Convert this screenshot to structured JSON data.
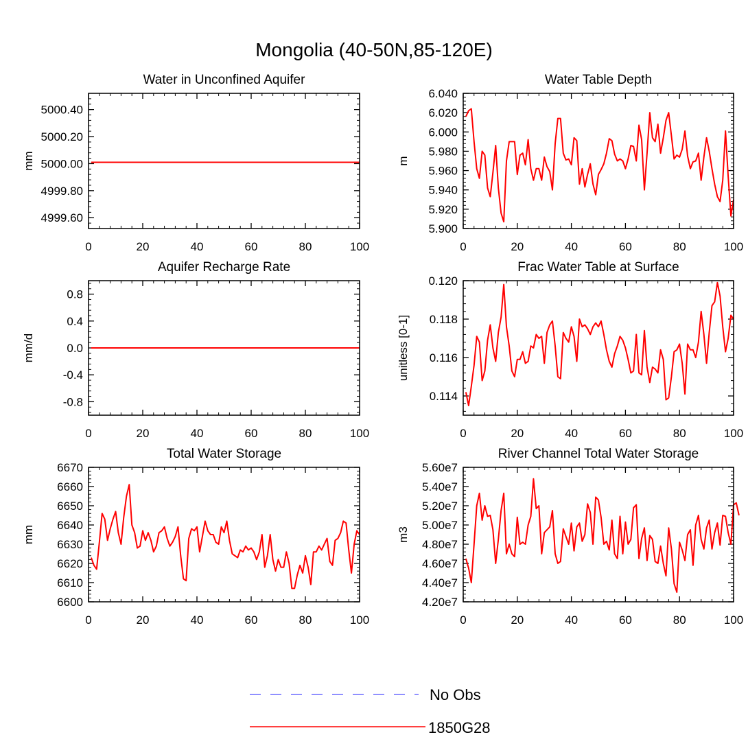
{
  "figure": {
    "title": "Mongolia (40-50N,85-120E)"
  },
  "legend": {
    "entries": [
      {
        "label": "No Obs",
        "color": "#6b6bff",
        "style": "dashed"
      },
      {
        "label": "1850G28",
        "color": "#ff0000",
        "style": "solid"
      }
    ]
  },
  "colors": {
    "series": "#ff0000",
    "axis": "#000000"
  },
  "chart_data": [
    {
      "type": "line",
      "title": "Water in Unconfined Aquifer",
      "xlabel": "",
      "ylabel": "mm",
      "xlim": [
        0,
        100
      ],
      "ylim": [
        4999.52,
        5000.52
      ],
      "xticks": [
        0,
        20,
        40,
        60,
        80,
        100
      ],
      "xtick_labels": [
        "0",
        "20",
        "40",
        "60",
        "80",
        "100"
      ],
      "yticks": [
        4999.6,
        4999.8,
        5000.0,
        5000.2,
        5000.4
      ],
      "ytick_labels": [
        "4999.60",
        "4999.80",
        "5000.00",
        "5000.20",
        "5000.40"
      ],
      "yminor_step": 0.04,
      "series": [
        {
          "name": "1850G28",
          "x": [
            1,
            100
          ],
          "values": [
            5000.01,
            5000.01
          ]
        }
      ]
    },
    {
      "type": "line",
      "title": "Water Table Depth",
      "xlabel": "",
      "ylabel": "m",
      "xlim": [
        0,
        100
      ],
      "ylim": [
        5.9,
        6.04
      ],
      "xticks": [
        0,
        20,
        40,
        60,
        80,
        100
      ],
      "xtick_labels": [
        "0",
        "20",
        "40",
        "60",
        "80",
        "100"
      ],
      "yticks": [
        5.9,
        5.92,
        5.94,
        5.96,
        5.98,
        6.0,
        6.02,
        6.04
      ],
      "ytick_labels": [
        "5.900",
        "5.920",
        "5.940",
        "5.960",
        "5.980",
        "6.000",
        "6.020",
        "6.040"
      ],
      "yminor_step": 0.004,
      "series": [
        {
          "name": "1850G28",
          "start": 1,
          "values": [
            6.016,
            6.022,
            6.024,
            5.99,
            5.962,
            5.952,
            5.98,
            5.976,
            5.942,
            5.933,
            5.958,
            5.986,
            5.942,
            5.916,
            5.907,
            5.97,
            5.99,
            5.99,
            5.99,
            5.956,
            5.976,
            5.978,
            5.966,
            5.992,
            5.962,
            5.95,
            5.962,
            5.962,
            5.95,
            5.974,
            5.964,
            5.959,
            5.94,
            5.988,
            6.014,
            6.014,
            5.978,
            5.971,
            5.972,
            5.966,
            5.994,
            5.991,
            5.946,
            5.962,
            5.943,
            5.956,
            5.967,
            5.946,
            5.935,
            5.956,
            5.961,
            5.967,
            5.978,
            5.993,
            5.991,
            5.977,
            5.97,
            5.972,
            5.97,
            5.962,
            5.972,
            5.986,
            5.985,
            5.97,
            6.007,
            5.992,
            5.94,
            5.978,
            6.02,
            5.994,
            5.99,
            6.008,
            5.978,
            5.994,
            6.012,
            6.02,
            5.996,
            5.972,
            5.976,
            5.974,
            5.982,
            6.001,
            5.975,
            5.962,
            5.969,
            5.97,
            5.978,
            5.95,
            5.974,
            5.994,
            5.98,
            5.962,
            5.946,
            5.933,
            5.928,
            5.95,
            6.001,
            5.954,
            5.913,
            5.93
          ]
        }
      ]
    },
    {
      "type": "line",
      "title": "Aquifer Recharge Rate",
      "xlabel": "",
      "ylabel": "mm/d",
      "xlim": [
        0,
        100
      ],
      "ylim": [
        -1.0,
        1.0
      ],
      "xticks": [
        0,
        20,
        40,
        60,
        80,
        100
      ],
      "xtick_labels": [
        "0",
        "20",
        "40",
        "60",
        "80",
        "100"
      ],
      "yticks": [
        -0.8,
        -0.4,
        0.0,
        0.4,
        0.8
      ],
      "ytick_labels": [
        "-0.8",
        "-0.4",
        "0.0",
        "0.4",
        "0.8"
      ],
      "yminor_step": 0.08,
      "series": [
        {
          "name": "1850G28",
          "x": [
            1,
            100
          ],
          "values": [
            0.0,
            0.0
          ]
        }
      ]
    },
    {
      "type": "line",
      "title": "Frac Water Table at Surface",
      "xlabel": "",
      "ylabel": "unitless [0-1]",
      "xlim": [
        0,
        100
      ],
      "ylim": [
        0.113,
        0.12
      ],
      "xticks": [
        0,
        20,
        40,
        60,
        80,
        100
      ],
      "xtick_labels": [
        "0",
        "20",
        "40",
        "60",
        "80",
        "100"
      ],
      "yticks": [
        0.114,
        0.116,
        0.118,
        0.12
      ],
      "ytick_labels": [
        "0.114",
        "0.116",
        "0.118",
        "0.120"
      ],
      "yminor_step": 0.0004,
      "series": [
        {
          "name": "1850G28",
          "start": 1,
          "values": [
            0.1142,
            0.1135,
            0.1145,
            0.1156,
            0.1171,
            0.1168,
            0.1148,
            0.1153,
            0.1169,
            0.1177,
            0.1165,
            0.1158,
            0.1173,
            0.1181,
            0.1198,
            0.1176,
            0.1166,
            0.1153,
            0.115,
            0.1159,
            0.1159,
            0.1163,
            0.1157,
            0.1158,
            0.1166,
            0.1165,
            0.1172,
            0.117,
            0.1171,
            0.1157,
            0.1173,
            0.1177,
            0.1179,
            0.1166,
            0.115,
            0.1149,
            0.1173,
            0.117,
            0.1168,
            0.1176,
            0.1171,
            0.1158,
            0.118,
            0.1176,
            0.1177,
            0.1175,
            0.1172,
            0.1176,
            0.1178,
            0.1176,
            0.1179,
            0.1172,
            0.1164,
            0.1158,
            0.1155,
            0.1162,
            0.1166,
            0.1171,
            0.1169,
            0.1165,
            0.1159,
            0.1152,
            0.1153,
            0.1172,
            0.1152,
            0.1151,
            0.1174,
            0.1155,
            0.1147,
            0.1155,
            0.1154,
            0.1152,
            0.1164,
            0.1159,
            0.1138,
            0.1139,
            0.115,
            0.1163,
            0.1164,
            0.1167,
            0.1157,
            0.1141,
            0.1167,
            0.1164,
            0.1164,
            0.116,
            0.1168,
            0.1184,
            0.1172,
            0.1157,
            0.1173,
            0.1187,
            0.1189,
            0.1199,
            0.1192,
            0.1176,
            0.1163,
            0.117,
            0.1182,
            0.118
          ]
        }
      ]
    },
    {
      "type": "line",
      "title": "Total Water Storage",
      "xlabel": "",
      "ylabel": "mm",
      "xlim": [
        0,
        100
      ],
      "ylim": [
        6600,
        6670
      ],
      "xticks": [
        0,
        20,
        40,
        60,
        80,
        100
      ],
      "xtick_labels": [
        "0",
        "20",
        "40",
        "60",
        "80",
        "100"
      ],
      "yticks": [
        6600,
        6610,
        6620,
        6630,
        6640,
        6650,
        6660,
        6670
      ],
      "ytick_labels": [
        "6600",
        "6610",
        "6620",
        "6630",
        "6640",
        "6650",
        "6660",
        "6670"
      ],
      "yminor_step": 2,
      "series": [
        {
          "name": "1850G28",
          "start": 1,
          "values": [
            6623,
            6619,
            6617,
            6631,
            6646,
            6643,
            6632,
            6638,
            6643,
            6647,
            6636,
            6630,
            6644,
            6655,
            6661,
            6640,
            6636,
            6628,
            6629,
            6637,
            6632,
            6636,
            6632,
            6626,
            6629,
            6636,
            6637,
            6639,
            6633,
            6629,
            6631,
            6634,
            6639,
            6624,
            6612,
            6611,
            6633,
            6638,
            6637,
            6639,
            6626,
            6634,
            6642,
            6637,
            6635,
            6635,
            6631,
            6630,
            6639,
            6636,
            6642,
            6632,
            6625,
            6624,
            6623,
            6627,
            6626,
            6629,
            6627,
            6628,
            6626,
            6622,
            6626,
            6635,
            6618,
            6624,
            6635,
            6622,
            6616,
            6622,
            6618,
            6618,
            6626,
            6620,
            6607,
            6607,
            6614,
            6619,
            6615,
            6624,
            6618,
            6609,
            6626,
            6626,
            6629,
            6627,
            6630,
            6633,
            6621,
            6619,
            6632,
            6633,
            6636,
            6642,
            6641,
            6627,
            6615,
            6630,
            6637,
            6635
          ]
        }
      ]
    },
    {
      "type": "line",
      "title": "River Channel Total Water Storage",
      "xlabel": "",
      "ylabel": "m3",
      "xlim": [
        0,
        100
      ],
      "ylim": [
        42000000,
        56000000
      ],
      "xticks": [
        0,
        20,
        40,
        60,
        80,
        100
      ],
      "xtick_labels": [
        "0",
        "20",
        "40",
        "60",
        "80",
        "100"
      ],
      "yticks": [
        42000000,
        44000000,
        46000000,
        48000000,
        50000000,
        52000000,
        54000000,
        56000000
      ],
      "ytick_labels": [
        "4.20e7",
        "4.40e7",
        "4.60e7",
        "4.80e7",
        "5.00e7",
        "5.20e7",
        "5.40e7",
        "5.60e7"
      ],
      "yminor_step": 400000,
      "series": [
        {
          "name": "1850G28",
          "start": 1,
          "values": [
            46500000,
            45500000,
            44000000,
            48000000,
            52000000,
            53300000,
            50500000,
            52000000,
            50900000,
            51000000,
            49500000,
            46000000,
            48500000,
            51500000,
            53300000,
            47000000,
            48000000,
            47000000,
            46700000,
            50800000,
            48000000,
            48200000,
            48000000,
            50000000,
            50900000,
            54800000,
            51700000,
            52000000,
            47000000,
            49200000,
            49500000,
            49800000,
            51500000,
            47000000,
            46000000,
            46200000,
            49600000,
            48800000,
            48000000,
            50200000,
            47300000,
            49800000,
            50200000,
            48300000,
            49000000,
            52200000,
            51300000,
            48000000,
            52900000,
            52600000,
            50800000,
            48000000,
            48300000,
            47400000,
            50500000,
            47000000,
            46500000,
            50900000,
            47000000,
            50300000,
            48000000,
            48500000,
            51800000,
            52100000,
            46500000,
            48600000,
            49700000,
            46300000,
            48900000,
            48500000,
            46200000,
            46000000,
            47800000,
            46000000,
            44700000,
            49700000,
            47500000,
            43900000,
            43000000,
            48200000,
            47400000,
            46300000,
            49000000,
            49500000,
            45800000,
            50000000,
            51000000,
            48500000,
            47500000,
            49700000,
            50500000,
            47500000,
            49200000,
            50200000,
            47900000,
            51000000,
            50900000,
            49200000,
            48000000,
            52100000,
            52300000,
            51000000
          ]
        }
      ]
    }
  ]
}
